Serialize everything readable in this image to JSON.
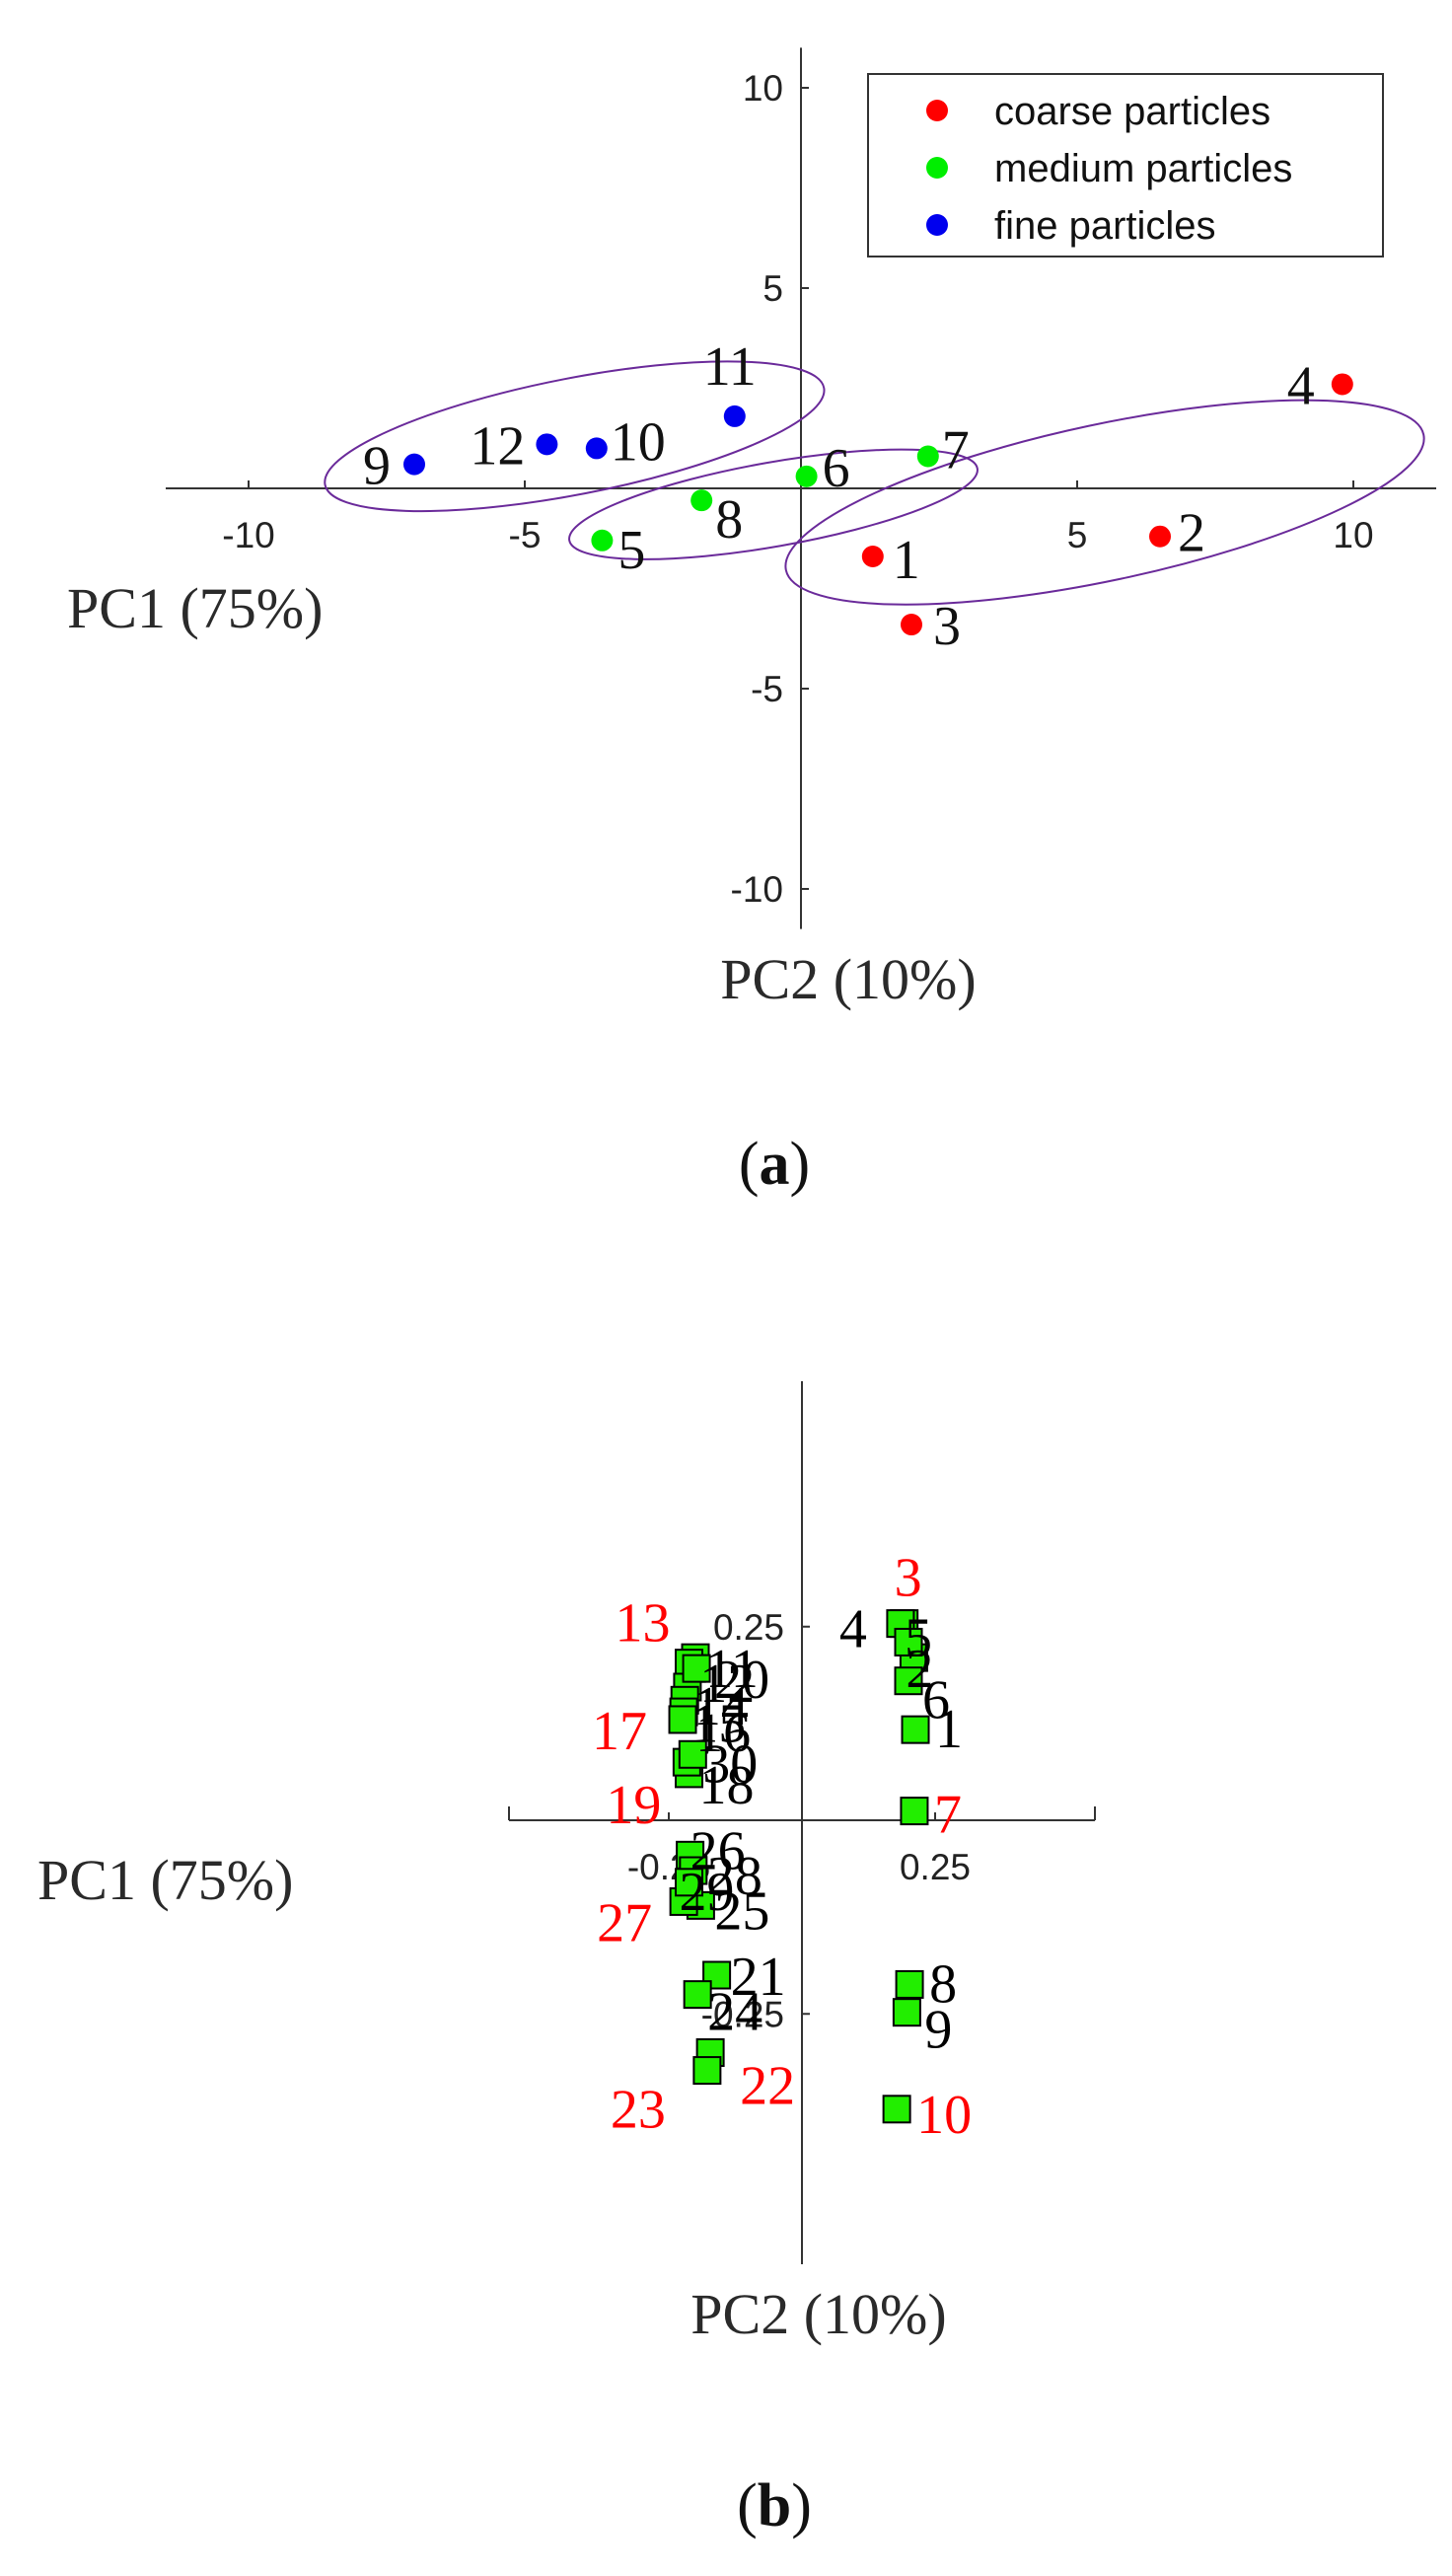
{
  "chart_data": [
    {
      "type": "scatter",
      "panel_label": {
        "open": "(",
        "letter": "a",
        "close": ")"
      },
      "xlabel": "PC2  (10%)",
      "ylabel": "PC1  (75%)",
      "xlim": [
        -11.5,
        11.5
      ],
      "ylim": [
        -11,
        11
      ],
      "xticks": [
        -10,
        -5,
        5,
        10
      ],
      "yticks": [
        10,
        5,
        -5,
        -10
      ],
      "legend_position": "top-right",
      "series": [
        {
          "name": "coarse particles",
          "color": "#ff0000",
          "points": [
            {
              "label": "1",
              "x": 1.3,
              "y": -1.7
            },
            {
              "label": "2",
              "x": 6.5,
              "y": -1.2
            },
            {
              "label": "3",
              "x": 2.0,
              "y": -3.4
            },
            {
              "label": "4",
              "x": 9.8,
              "y": 2.6
            }
          ]
        },
        {
          "name": "medium particles",
          "color": "#00ee00",
          "points": [
            {
              "label": "5",
              "x": -3.6,
              "y": -1.3
            },
            {
              "label": "6",
              "x": 0.1,
              "y": 0.3
            },
            {
              "label": "7",
              "x": 2.3,
              "y": 0.8
            },
            {
              "label": "8",
              "x": -1.8,
              "y": -0.3
            }
          ]
        },
        {
          "name": "fine particles",
          "color": "#0000ee",
          "points": [
            {
              "label": "9",
              "x": -7.0,
              "y": 0.6
            },
            {
              "label": "10",
              "x": -3.7,
              "y": 1.0
            },
            {
              "label": "11",
              "x": -1.2,
              "y": 1.8
            },
            {
              "label": "12",
              "x": -4.6,
              "y": 1.1
            }
          ]
        }
      ]
    },
    {
      "type": "scatter",
      "panel_label": {
        "open": "(",
        "letter": "b",
        "close": ")"
      },
      "xlabel": "PC2  (10%)",
      "ylabel": "PC1  (75%)",
      "xlim": [
        -0.55,
        0.55
      ],
      "ylim": [
        -0.45,
        0.45
      ],
      "xticks": [
        -0.25,
        0.25
      ],
      "yticks": [
        0.25,
        -0.25
      ],
      "marker_color": "#22ee00",
      "points": [
        {
          "label": "1",
          "x": 0.213,
          "y": 0.117,
          "color": "#000000"
        },
        {
          "label": "2",
          "x": 0.21,
          "y": 0.21,
          "color": "#000000"
        },
        {
          "label": "3",
          "x": 0.192,
          "y": 0.254,
          "color": "#ff0000"
        },
        {
          "label": "4",
          "x": 0.185,
          "y": 0.254,
          "color": "#000000"
        },
        {
          "label": "5",
          "x": 0.2,
          "y": 0.23,
          "color": "#000000"
        },
        {
          "label": "6",
          "x": 0.2,
          "y": 0.18,
          "color": "#000000"
        },
        {
          "label": "7",
          "x": 0.211,
          "y": 0.012,
          "color": "#ff0000"
        },
        {
          "label": "8",
          "x": 0.202,
          "y": -0.212,
          "color": "#000000"
        },
        {
          "label": "9",
          "x": 0.197,
          "y": -0.248,
          "color": "#000000"
        },
        {
          "label": "10",
          "x": 0.178,
          "y": -0.373,
          "color": "#ff0000"
        },
        {
          "label": "11",
          "x": -0.2,
          "y": 0.21,
          "color": "#000000"
        },
        {
          "label": "12",
          "x": -0.207,
          "y": 0.196,
          "color": "#000000"
        },
        {
          "label": "13",
          "x": -0.212,
          "y": 0.203,
          "color": "#ff0000"
        },
        {
          "label": "14",
          "x": -0.215,
          "y": 0.172,
          "color": "#000000"
        },
        {
          "label": "15",
          "x": -0.22,
          "y": 0.155,
          "color": "#000000"
        },
        {
          "label": "16",
          "x": -0.222,
          "y": 0.14,
          "color": "#000000"
        },
        {
          "label": "17",
          "x": -0.224,
          "y": 0.13,
          "color": "#ff0000"
        },
        {
          "label": "18",
          "x": -0.212,
          "y": 0.06,
          "color": "#000000"
        },
        {
          "label": "19",
          "x": -0.216,
          "y": 0.075,
          "color": "#ff0000"
        },
        {
          "label": "20",
          "x": -0.198,
          "y": 0.196,
          "color": "#000000"
        },
        {
          "label": "21",
          "x": -0.16,
          "y": -0.2,
          "color": "#000000"
        },
        {
          "label": "22",
          "x": -0.172,
          "y": -0.3,
          "color": "#ff0000"
        },
        {
          "label": "23",
          "x": -0.178,
          "y": -0.323,
          "color": "#ff0000"
        },
        {
          "label": "24",
          "x": -0.196,
          "y": -0.225,
          "color": "#000000"
        },
        {
          "label": "25",
          "x": -0.19,
          "y": -0.11,
          "color": "#000000"
        },
        {
          "label": "26",
          "x": -0.21,
          "y": -0.045,
          "color": "#000000"
        },
        {
          "label": "27",
          "x": -0.222,
          "y": -0.105,
          "color": "#ff0000"
        },
        {
          "label": "28",
          "x": -0.204,
          "y": -0.065,
          "color": "#000000"
        },
        {
          "label": "29",
          "x": -0.212,
          "y": -0.08,
          "color": "#000000"
        },
        {
          "label": "30",
          "x": -0.205,
          "y": 0.085,
          "color": "#000000"
        }
      ]
    }
  ]
}
